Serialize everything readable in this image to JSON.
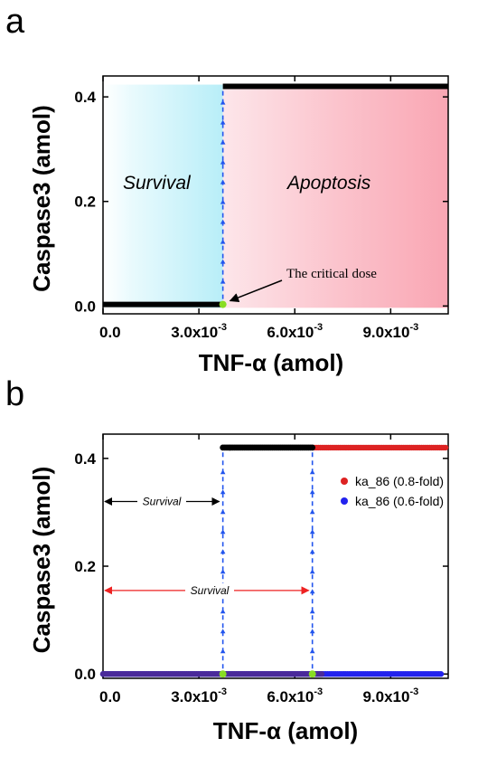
{
  "chart_data": [
    {
      "panel": "a",
      "type": "line",
      "xlabel": "TNF-α  (amol)",
      "ylabel": "Caspase3 (amol)",
      "xlim": [
        0,
        0.0108
      ],
      "ylim": [
        -0.015,
        0.44
      ],
      "x_ticks": [
        {
          "label": "0.0",
          "value": 0.0
        },
        {
          "label": "3.0x10",
          "exp": "-3",
          "value": 0.003
        },
        {
          "label": "6.0x10",
          "exp": "-3",
          "value": 0.006
        },
        {
          "label": "9.0x10",
          "exp": "-3",
          "value": 0.009
        }
      ],
      "y_ticks": [
        {
          "label": "0.0",
          "value": 0.0
        },
        {
          "label": "0.2",
          "value": 0.2
        },
        {
          "label": "0.4",
          "value": 0.4
        }
      ],
      "series": [
        {
          "color": "#000000",
          "segments": [
            {
              "x": [
                0.0,
                0.00375
              ],
              "y": [
                0.003,
                0.003
              ]
            },
            {
              "x": [
                0.00375,
                0.0108
              ],
              "y": [
                0.42,
                0.42
              ]
            }
          ]
        }
      ],
      "thresholds": [
        {
          "x": 0.00375,
          "color": "#2255ee"
        }
      ],
      "critical_points": [
        {
          "x": 0.00375,
          "y": 0.003,
          "color": "#88dd22"
        }
      ],
      "regions": [
        {
          "label": "Survival",
          "x": [
            0,
            0.00375
          ],
          "color": "#bff0fa"
        },
        {
          "label": "Apoptosis",
          "x": [
            0.00375,
            0.0108
          ],
          "color": "#fbb0bd"
        }
      ],
      "annotation": {
        "text": "The critical dose",
        "x": 0.00375,
        "y": 0.003
      }
    },
    {
      "panel": "b",
      "type": "line",
      "xlabel": "TNF-α  (amol)",
      "ylabel": "Caspase3 (amol)",
      "xlim": [
        0,
        0.0108
      ],
      "ylim": [
        -0.008,
        0.445
      ],
      "x_ticks": [
        {
          "label": "0.0",
          "value": 0.0
        },
        {
          "label": "3.0x10",
          "exp": "-3",
          "value": 0.003
        },
        {
          "label": "6.0x10",
          "exp": "-3",
          "value": 0.006
        },
        {
          "label": "9.0x10",
          "exp": "-3",
          "value": 0.009
        }
      ],
      "y_ticks": [
        {
          "label": "0.0",
          "value": 0.0
        },
        {
          "label": "0.2",
          "value": 0.2
        },
        {
          "label": "0.4",
          "value": 0.4
        }
      ],
      "legend": "right",
      "series": [
        {
          "name": "ka_86 (0.8-fold)",
          "color": "#dd2222",
          "segments": [
            {
              "x": [
                0.0,
                0.00375
              ],
              "y": [
                0.0,
                0.0
              ]
            },
            {
              "x": [
                0.00375,
                0.0108
              ],
              "y": [
                0.42,
                0.42
              ]
            }
          ]
        },
        {
          "name": "ka_86 (0.6-fold)",
          "color": "#2222ee",
          "segments": [
            {
              "x": [
                0.0,
                0.0108
              ],
              "y": [
                0.0,
                0.0
              ]
            }
          ]
        }
      ],
      "base_overlay": {
        "x": [
          0.0,
          0.0108
        ],
        "y": 0.0,
        "color": "#4a2a9a"
      },
      "high_black": {
        "x": [
          0.00375,
          0.00655
        ],
        "y": 0.42
      },
      "thresholds": [
        {
          "x": 0.00375,
          "color": "#2255ee"
        },
        {
          "x": 0.00655,
          "color": "#2255ee"
        }
      ],
      "critical_points": [
        {
          "x": 0.00375,
          "y": 0.0,
          "color": "#88dd22"
        },
        {
          "x": 0.00655,
          "y": 0.0,
          "color": "#88dd22"
        }
      ],
      "survival_ranges": [
        {
          "label": "Survival",
          "x": [
            0,
            0.00375
          ],
          "y": 0.32,
          "color": "#000000"
        },
        {
          "label": "Survival",
          "x": [
            0,
            0.00655
          ],
          "y": 0.155,
          "color": "#ee2222"
        }
      ]
    }
  ],
  "panels": {
    "a": {
      "letter": "a",
      "xtitle": "TNF-α  (amol)",
      "ytitle": "Caspase3 (amol)",
      "survival": "Survival",
      "apoptosis": "Apoptosis",
      "critical": "The critical dose"
    },
    "b": {
      "letter": "b",
      "xtitle": "TNF-α  (amol)",
      "ytitle": "Caspase3 (amol)",
      "survival1": "Survival",
      "survival2": "Survival",
      "legend1": "ka_86 (0.8-fold)",
      "legend2": "ka_86 (0.6-fold)"
    }
  }
}
